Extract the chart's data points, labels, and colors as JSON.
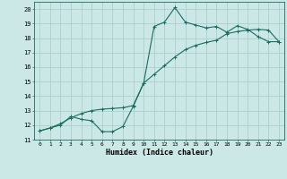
{
  "xlabel": "Humidex (Indice chaleur)",
  "x_data": [
    0,
    1,
    2,
    3,
    4,
    5,
    6,
    7,
    8,
    9,
    10,
    11,
    12,
    13,
    14,
    15,
    16,
    17,
    18,
    19,
    20,
    21,
    22,
    23
  ],
  "y_jagged": [
    11.6,
    11.8,
    12.0,
    12.6,
    12.4,
    12.3,
    11.55,
    11.55,
    11.9,
    13.3,
    14.9,
    18.8,
    19.1,
    20.1,
    19.1,
    18.9,
    18.7,
    18.8,
    18.4,
    18.85,
    18.6,
    18.1,
    17.75,
    17.75
  ],
  "y_smooth": [
    11.6,
    11.8,
    12.1,
    12.5,
    12.8,
    13.0,
    13.1,
    13.15,
    13.2,
    13.35,
    14.9,
    15.5,
    16.1,
    16.7,
    17.2,
    17.5,
    17.7,
    17.85,
    18.3,
    18.45,
    18.55,
    18.6,
    18.55,
    17.75
  ],
  "bg_color": "#cce8e6",
  "grid_color": "#aacfcd",
  "line_color": "#1a6b60",
  "ylim": [
    11,
    20.5
  ],
  "xlim": [
    -0.5,
    23.5
  ],
  "yticks": [
    11,
    12,
    13,
    14,
    15,
    16,
    17,
    18,
    19,
    20
  ],
  "xticks": [
    0,
    1,
    2,
    3,
    4,
    5,
    6,
    7,
    8,
    9,
    10,
    11,
    12,
    13,
    14,
    15,
    16,
    17,
    18,
    19,
    20,
    21,
    22,
    23
  ],
  "figsize": [
    3.2,
    2.0
  ],
  "dpi": 100
}
